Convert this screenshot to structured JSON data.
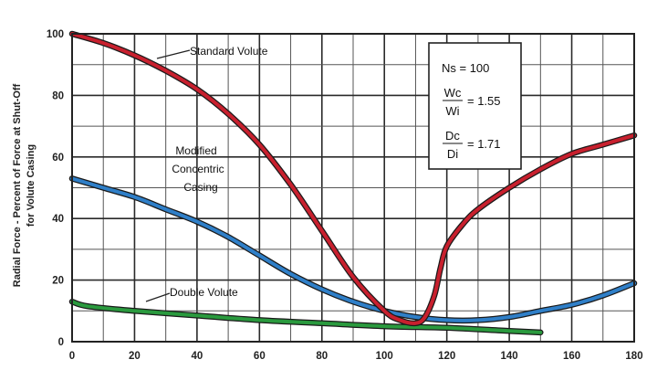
{
  "chart_data": {
    "type": "line",
    "ylabel_line1": "Radial Force - Percent of Force at Shut-Off",
    "ylabel_line2": "for Volute Casing",
    "xlim": [
      0,
      180
    ],
    "ylim": [
      0,
      100
    ],
    "x_ticks": [
      "0",
      "20",
      "40",
      "60",
      "80",
      "100",
      "120",
      "140",
      "160",
      "180"
    ],
    "y_ticks": [
      "0",
      "20",
      "40",
      "60",
      "80",
      "100"
    ],
    "grid": true,
    "series": [
      {
        "name": "Standard Volute",
        "color": "#c8202e",
        "x": [
          0,
          10,
          20,
          30,
          40,
          50,
          60,
          70,
          80,
          90,
          100,
          105,
          110,
          113,
          116,
          118,
          120,
          125,
          130,
          140,
          150,
          160,
          170,
          180
        ],
        "y": [
          100,
          97,
          93,
          88,
          82,
          74,
          64,
          51,
          36,
          21,
          10,
          7,
          6,
          8,
          15,
          24,
          31,
          38,
          43,
          50,
          56,
          61,
          64,
          67
        ]
      },
      {
        "name": "Modified Concentric Casing",
        "color": "#2f7fc8",
        "x": [
          0,
          10,
          20,
          30,
          40,
          50,
          60,
          70,
          80,
          90,
          100,
          110,
          120,
          130,
          140,
          150,
          160,
          170,
          180
        ],
        "y": [
          53,
          50,
          47,
          43,
          39,
          34,
          28,
          22,
          17,
          13,
          10,
          8,
          7,
          7,
          8,
          10,
          12,
          15,
          19
        ]
      },
      {
        "name": "Double Volute",
        "color": "#2a9a3e",
        "x": [
          0,
          5,
          20,
          40,
          60,
          80,
          100,
          120,
          140,
          150
        ],
        "y": [
          13,
          11.5,
          10,
          8.5,
          7,
          6,
          5,
          4.5,
          3.5,
          3
        ]
      }
    ],
    "callouts": {
      "standard": "Standard Volute",
      "modified_line1": "Modified",
      "modified_line2": "Concentric",
      "modified_line3": "Casing",
      "double": "Double Volute"
    },
    "info_box": {
      "ns": "Ns = 100",
      "wc": "Wc",
      "wi": "Wi",
      "wratio": "= 1.55",
      "dc": "Dc",
      "di": "Di",
      "dratio": "= 1.71"
    }
  }
}
